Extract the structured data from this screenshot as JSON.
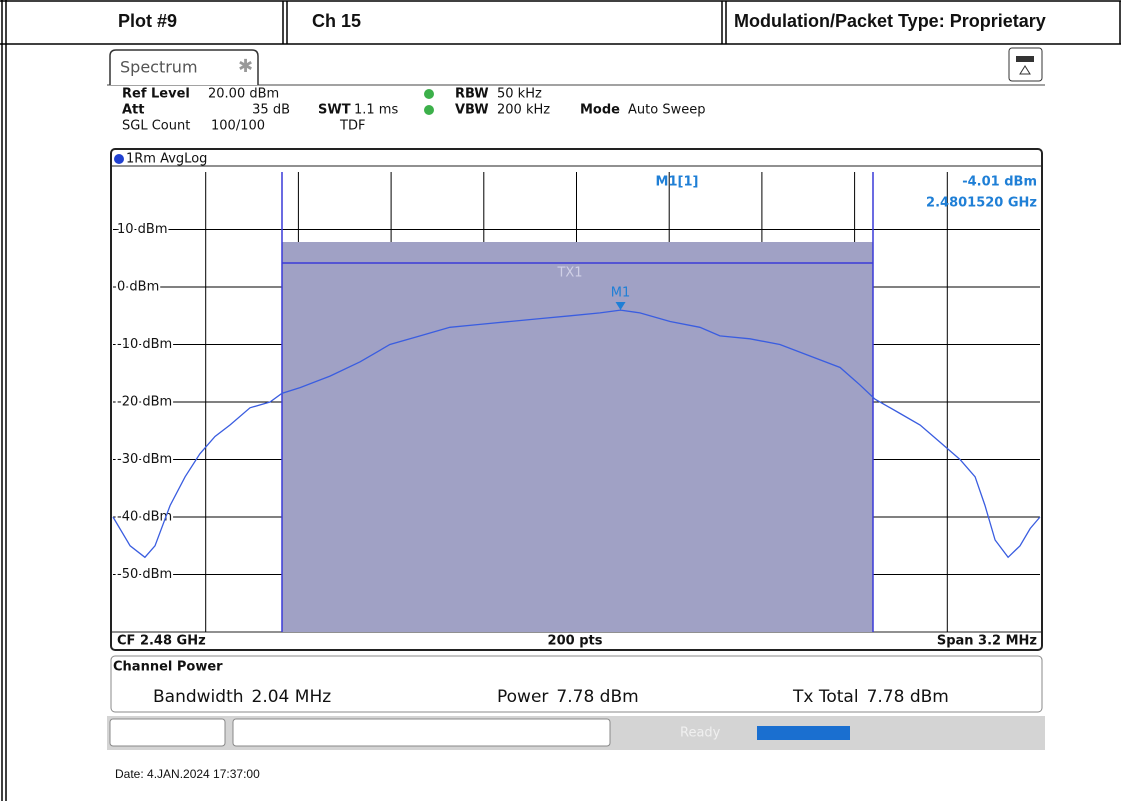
{
  "header": {
    "plot": "Plot #9",
    "channel": "Ch 15",
    "modulation": "Modulation/Packet Type: Proprietary"
  },
  "tab": "Spectrum",
  "settings": [
    {
      "label": "Ref Level",
      "value": "20.00 dBm"
    },
    {
      "label": "Att",
      "value": "35 dB"
    },
    {
      "label": "SGL Count",
      "value": "100/100"
    },
    {
      "label": "SWT",
      "value": "1.1 ms"
    },
    {
      "label": "TDF",
      "value": ""
    },
    {
      "label": "RBW",
      "value": "50 kHz"
    },
    {
      "label": "VBW",
      "value": "200 kHz"
    },
    {
      "label": "Mode",
      "value": "Auto Sweep"
    }
  ],
  "footer": {
    "cf": "CF 2.48 GHz",
    "points": "200 pts",
    "span": "Span 3.2 MHz"
  },
  "channel_power": {
    "title": "Channel Power",
    "rows": [
      {
        "label": "Bandwidth",
        "value": "2.04 MHz"
      },
      {
        "label": "Power",
        "value": "7.78 dBm"
      },
      {
        "label": "Tx Total",
        "value": "7.78 dBm"
      }
    ]
  },
  "status": "Ready",
  "date": "Date: 4.JAN.2024  17:37:00",
  "chart_data": {
    "type": "line",
    "channel_label": "TX1",
    "marker": {
      "name": "M1",
      "label": "M1[1]",
      "x": 2480.152,
      "y": -4.01,
      "value_label": "-4.01 dBm",
      "x_label": "2.4801520 GHz"
    },
    "x": [
      2478.4,
      2478.459,
      2478.51,
      2478.545,
      2478.597,
      2478.649,
      2478.7,
      2478.752,
      2478.804,
      2478.873,
      2478.942,
      2478.983,
      2479.046,
      2479.149,
      2479.253,
      2479.356,
      2479.46,
      2479.563,
      2479.667,
      2479.77,
      2479.874,
      2479.978,
      2480.081,
      2480.152,
      2480.219,
      2480.323,
      2480.426,
      2480.495,
      2480.599,
      2480.702,
      2480.806,
      2480.91,
      2480.978,
      2481.03,
      2481.117,
      2481.186,
      2481.255,
      2481.324,
      2481.376,
      2481.41,
      2481.445,
      2481.49,
      2481.531,
      2481.566,
      2481.6
    ],
    "series": [
      {
        "name": "1Rm AvgLog",
        "color": "#3a5de0",
        "values": [
          -40,
          -45,
          -47,
          -45,
          -38,
          -33,
          -29,
          -26,
          -24,
          -21,
          -20,
          -18.5,
          -17.5,
          -15.5,
          -13,
          -10,
          -8.5,
          -7,
          -6.5,
          -6,
          -5.5,
          -5,
          -4.5,
          -4.01,
          -4.5,
          -6,
          -7,
          -8.5,
          -9,
          -10,
          -12,
          -14,
          -17,
          -19.5,
          -22,
          -24,
          -27,
          -30,
          -33,
          -38,
          -44,
          -47,
          -45,
          -42,
          -40
        ]
      }
    ],
    "xlim": [
      2478.4,
      2481.6
    ],
    "ylim": [
      -60,
      20
    ],
    "yticks": [
      {
        "value": 10,
        "label": "10 dBm"
      },
      {
        "value": 0,
        "label": "0 dBm"
      },
      {
        "value": -10,
        "label": "-10 dBm"
      },
      {
        "value": -20,
        "label": "-20 dBm"
      },
      {
        "value": -30,
        "label": "-30 dBm"
      },
      {
        "value": -40,
        "label": "-40 dBm"
      },
      {
        "value": -50,
        "label": "-50 dBm"
      }
    ],
    "grid": true
  }
}
